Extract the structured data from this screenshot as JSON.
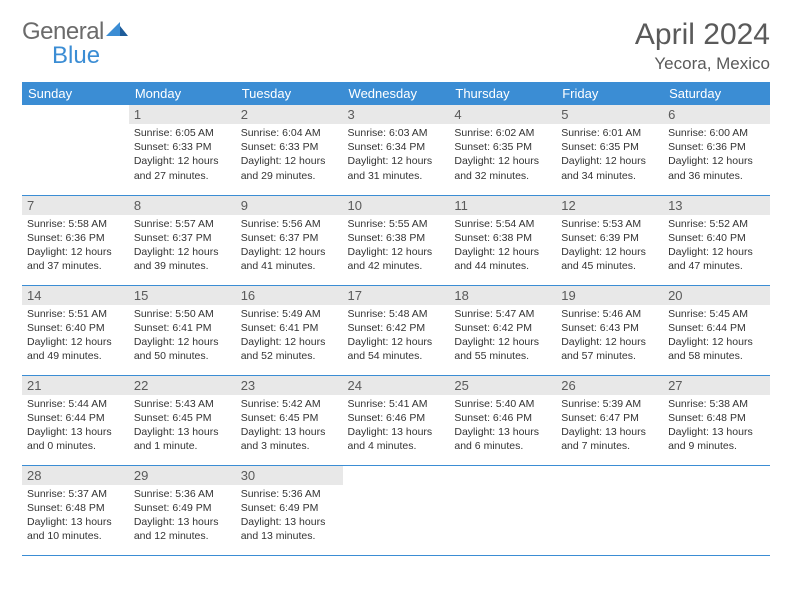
{
  "logo": {
    "text1": "General",
    "text2": "Blue",
    "color1": "#6b6b6b",
    "color2": "#3b8dd4"
  },
  "title": "April 2024",
  "location": "Yecora, Mexico",
  "colors": {
    "header_bg": "#3b8dd4",
    "header_text": "#ffffff",
    "daynum_bg": "#e8e8e8",
    "border": "#3b8dd4",
    "text": "#333333",
    "background": "#ffffff"
  },
  "weekdays": [
    "Sunday",
    "Monday",
    "Tuesday",
    "Wednesday",
    "Thursday",
    "Friday",
    "Saturday"
  ],
  "weeks": [
    [
      {
        "day": "",
        "lines": []
      },
      {
        "day": "1",
        "lines": [
          "Sunrise: 6:05 AM",
          "Sunset: 6:33 PM",
          "Daylight: 12 hours",
          "and 27 minutes."
        ]
      },
      {
        "day": "2",
        "lines": [
          "Sunrise: 6:04 AM",
          "Sunset: 6:33 PM",
          "Daylight: 12 hours",
          "and 29 minutes."
        ]
      },
      {
        "day": "3",
        "lines": [
          "Sunrise: 6:03 AM",
          "Sunset: 6:34 PM",
          "Daylight: 12 hours",
          "and 31 minutes."
        ]
      },
      {
        "day": "4",
        "lines": [
          "Sunrise: 6:02 AM",
          "Sunset: 6:35 PM",
          "Daylight: 12 hours",
          "and 32 minutes."
        ]
      },
      {
        "day": "5",
        "lines": [
          "Sunrise: 6:01 AM",
          "Sunset: 6:35 PM",
          "Daylight: 12 hours",
          "and 34 minutes."
        ]
      },
      {
        "day": "6",
        "lines": [
          "Sunrise: 6:00 AM",
          "Sunset: 6:36 PM",
          "Daylight: 12 hours",
          "and 36 minutes."
        ]
      }
    ],
    [
      {
        "day": "7",
        "lines": [
          "Sunrise: 5:58 AM",
          "Sunset: 6:36 PM",
          "Daylight: 12 hours",
          "and 37 minutes."
        ]
      },
      {
        "day": "8",
        "lines": [
          "Sunrise: 5:57 AM",
          "Sunset: 6:37 PM",
          "Daylight: 12 hours",
          "and 39 minutes."
        ]
      },
      {
        "day": "9",
        "lines": [
          "Sunrise: 5:56 AM",
          "Sunset: 6:37 PM",
          "Daylight: 12 hours",
          "and 41 minutes."
        ]
      },
      {
        "day": "10",
        "lines": [
          "Sunrise: 5:55 AM",
          "Sunset: 6:38 PM",
          "Daylight: 12 hours",
          "and 42 minutes."
        ]
      },
      {
        "day": "11",
        "lines": [
          "Sunrise: 5:54 AM",
          "Sunset: 6:38 PM",
          "Daylight: 12 hours",
          "and 44 minutes."
        ]
      },
      {
        "day": "12",
        "lines": [
          "Sunrise: 5:53 AM",
          "Sunset: 6:39 PM",
          "Daylight: 12 hours",
          "and 45 minutes."
        ]
      },
      {
        "day": "13",
        "lines": [
          "Sunrise: 5:52 AM",
          "Sunset: 6:40 PM",
          "Daylight: 12 hours",
          "and 47 minutes."
        ]
      }
    ],
    [
      {
        "day": "14",
        "lines": [
          "Sunrise: 5:51 AM",
          "Sunset: 6:40 PM",
          "Daylight: 12 hours",
          "and 49 minutes."
        ]
      },
      {
        "day": "15",
        "lines": [
          "Sunrise: 5:50 AM",
          "Sunset: 6:41 PM",
          "Daylight: 12 hours",
          "and 50 minutes."
        ]
      },
      {
        "day": "16",
        "lines": [
          "Sunrise: 5:49 AM",
          "Sunset: 6:41 PM",
          "Daylight: 12 hours",
          "and 52 minutes."
        ]
      },
      {
        "day": "17",
        "lines": [
          "Sunrise: 5:48 AM",
          "Sunset: 6:42 PM",
          "Daylight: 12 hours",
          "and 54 minutes."
        ]
      },
      {
        "day": "18",
        "lines": [
          "Sunrise: 5:47 AM",
          "Sunset: 6:42 PM",
          "Daylight: 12 hours",
          "and 55 minutes."
        ]
      },
      {
        "day": "19",
        "lines": [
          "Sunrise: 5:46 AM",
          "Sunset: 6:43 PM",
          "Daylight: 12 hours",
          "and 57 minutes."
        ]
      },
      {
        "day": "20",
        "lines": [
          "Sunrise: 5:45 AM",
          "Sunset: 6:44 PM",
          "Daylight: 12 hours",
          "and 58 minutes."
        ]
      }
    ],
    [
      {
        "day": "21",
        "lines": [
          "Sunrise: 5:44 AM",
          "Sunset: 6:44 PM",
          "Daylight: 13 hours",
          "and 0 minutes."
        ]
      },
      {
        "day": "22",
        "lines": [
          "Sunrise: 5:43 AM",
          "Sunset: 6:45 PM",
          "Daylight: 13 hours",
          "and 1 minute."
        ]
      },
      {
        "day": "23",
        "lines": [
          "Sunrise: 5:42 AM",
          "Sunset: 6:45 PM",
          "Daylight: 13 hours",
          "and 3 minutes."
        ]
      },
      {
        "day": "24",
        "lines": [
          "Sunrise: 5:41 AM",
          "Sunset: 6:46 PM",
          "Daylight: 13 hours",
          "and 4 minutes."
        ]
      },
      {
        "day": "25",
        "lines": [
          "Sunrise: 5:40 AM",
          "Sunset: 6:46 PM",
          "Daylight: 13 hours",
          "and 6 minutes."
        ]
      },
      {
        "day": "26",
        "lines": [
          "Sunrise: 5:39 AM",
          "Sunset: 6:47 PM",
          "Daylight: 13 hours",
          "and 7 minutes."
        ]
      },
      {
        "day": "27",
        "lines": [
          "Sunrise: 5:38 AM",
          "Sunset: 6:48 PM",
          "Daylight: 13 hours",
          "and 9 minutes."
        ]
      }
    ],
    [
      {
        "day": "28",
        "lines": [
          "Sunrise: 5:37 AM",
          "Sunset: 6:48 PM",
          "Daylight: 13 hours",
          "and 10 minutes."
        ]
      },
      {
        "day": "29",
        "lines": [
          "Sunrise: 5:36 AM",
          "Sunset: 6:49 PM",
          "Daylight: 13 hours",
          "and 12 minutes."
        ]
      },
      {
        "day": "30",
        "lines": [
          "Sunrise: 5:36 AM",
          "Sunset: 6:49 PM",
          "Daylight: 13 hours",
          "and 13 minutes."
        ]
      },
      {
        "day": "",
        "lines": []
      },
      {
        "day": "",
        "lines": []
      },
      {
        "day": "",
        "lines": []
      },
      {
        "day": "",
        "lines": []
      }
    ]
  ]
}
